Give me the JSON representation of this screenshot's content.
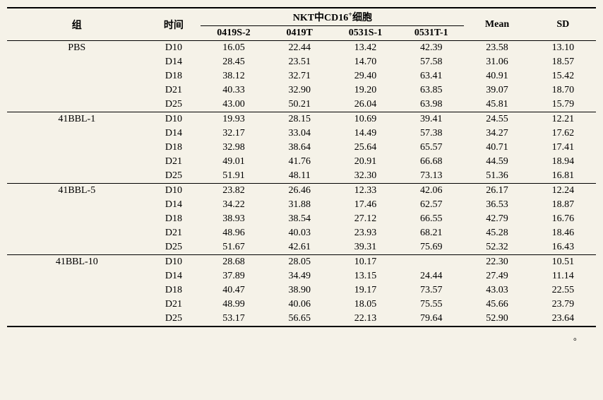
{
  "headers": {
    "group": "组",
    "time": "时间",
    "nkt_header": "NKT中CD16",
    "nkt_sup": "+",
    "nkt_suffix": "细胞",
    "mean": "Mean",
    "sd": "SD",
    "subcols": [
      "0419S-2",
      "0419T",
      "0531S-1",
      "0531T-1"
    ]
  },
  "groups": [
    {
      "name": "PBS",
      "rows": [
        {
          "time": "D10",
          "c1": "16.05",
          "c2": "22.44",
          "c3": "13.42",
          "c4": "42.39",
          "mean": "23.58",
          "sd": "13.10"
        },
        {
          "time": "D14",
          "c1": "28.45",
          "c2": "23.51",
          "c3": "14.70",
          "c4": "57.58",
          "mean": "31.06",
          "sd": "18.57"
        },
        {
          "time": "D18",
          "c1": "38.12",
          "c2": "32.71",
          "c3": "29.40",
          "c4": "63.41",
          "mean": "40.91",
          "sd": "15.42"
        },
        {
          "time": "D21",
          "c1": "40.33",
          "c2": "32.90",
          "c3": "19.20",
          "c4": "63.85",
          "mean": "39.07",
          "sd": "18.70"
        },
        {
          "time": "D25",
          "c1": "43.00",
          "c2": "50.21",
          "c3": "26.04",
          "c4": "63.98",
          "mean": "45.81",
          "sd": "15.79"
        }
      ]
    },
    {
      "name": "41BBL-1",
      "rows": [
        {
          "time": "D10",
          "c1": "19.93",
          "c2": "28.15",
          "c3": "10.69",
          "c4": "39.41",
          "mean": "24.55",
          "sd": "12.21"
        },
        {
          "time": "D14",
          "c1": "32.17",
          "c2": "33.04",
          "c3": "14.49",
          "c4": "57.38",
          "mean": "34.27",
          "sd": "17.62"
        },
        {
          "time": "D18",
          "c1": "32.98",
          "c2": "38.64",
          "c3": "25.64",
          "c4": "65.57",
          "mean": "40.71",
          "sd": "17.41"
        },
        {
          "time": "D21",
          "c1": "49.01",
          "c2": "41.76",
          "c3": "20.91",
          "c4": "66.68",
          "mean": "44.59",
          "sd": "18.94"
        },
        {
          "time": "D25",
          "c1": "51.91",
          "c2": "48.11",
          "c3": "32.30",
          "c4": "73.13",
          "mean": "51.36",
          "sd": "16.81"
        }
      ]
    },
    {
      "name": "41BBL-5",
      "rows": [
        {
          "time": "D10",
          "c1": "23.82",
          "c2": "26.46",
          "c3": "12.33",
          "c4": "42.06",
          "mean": "26.17",
          "sd": "12.24"
        },
        {
          "time": "D14",
          "c1": "34.22",
          "c2": "31.88",
          "c3": "17.46",
          "c4": "62.57",
          "mean": "36.53",
          "sd": "18.87"
        },
        {
          "time": "D18",
          "c1": "38.93",
          "c2": "38.54",
          "c3": "27.12",
          "c4": "66.55",
          "mean": "42.79",
          "sd": "16.76"
        },
        {
          "time": "D21",
          "c1": "48.96",
          "c2": "40.03",
          "c3": "23.93",
          "c4": "68.21",
          "mean": "45.28",
          "sd": "18.46"
        },
        {
          "time": "D25",
          "c1": "51.67",
          "c2": "42.61",
          "c3": "39.31",
          "c4": "75.69",
          "mean": "52.32",
          "sd": "16.43"
        }
      ]
    },
    {
      "name": "41BBL-10",
      "rows": [
        {
          "time": "D10",
          "c1": "28.68",
          "c2": "28.05",
          "c3": "10.17",
          "c4": "",
          "mean": "22.30",
          "sd": "10.51"
        },
        {
          "time": "D14",
          "c1": "37.89",
          "c2": "34.49",
          "c3": "13.15",
          "c4": "24.44",
          "mean": "27.49",
          "sd": "11.14"
        },
        {
          "time": "D18",
          "c1": "40.47",
          "c2": "38.90",
          "c3": "19.17",
          "c4": "73.57",
          "mean": "43.03",
          "sd": "22.55"
        },
        {
          "time": "D21",
          "c1": "48.99",
          "c2": "40.06",
          "c3": "18.05",
          "c4": "75.55",
          "mean": "45.66",
          "sd": "23.79"
        },
        {
          "time": "D25",
          "c1": "53.17",
          "c2": "56.65",
          "c3": "22.13",
          "c4": "79.64",
          "mean": "52.90",
          "sd": "23.64"
        }
      ]
    }
  ],
  "footer_mark": "。"
}
